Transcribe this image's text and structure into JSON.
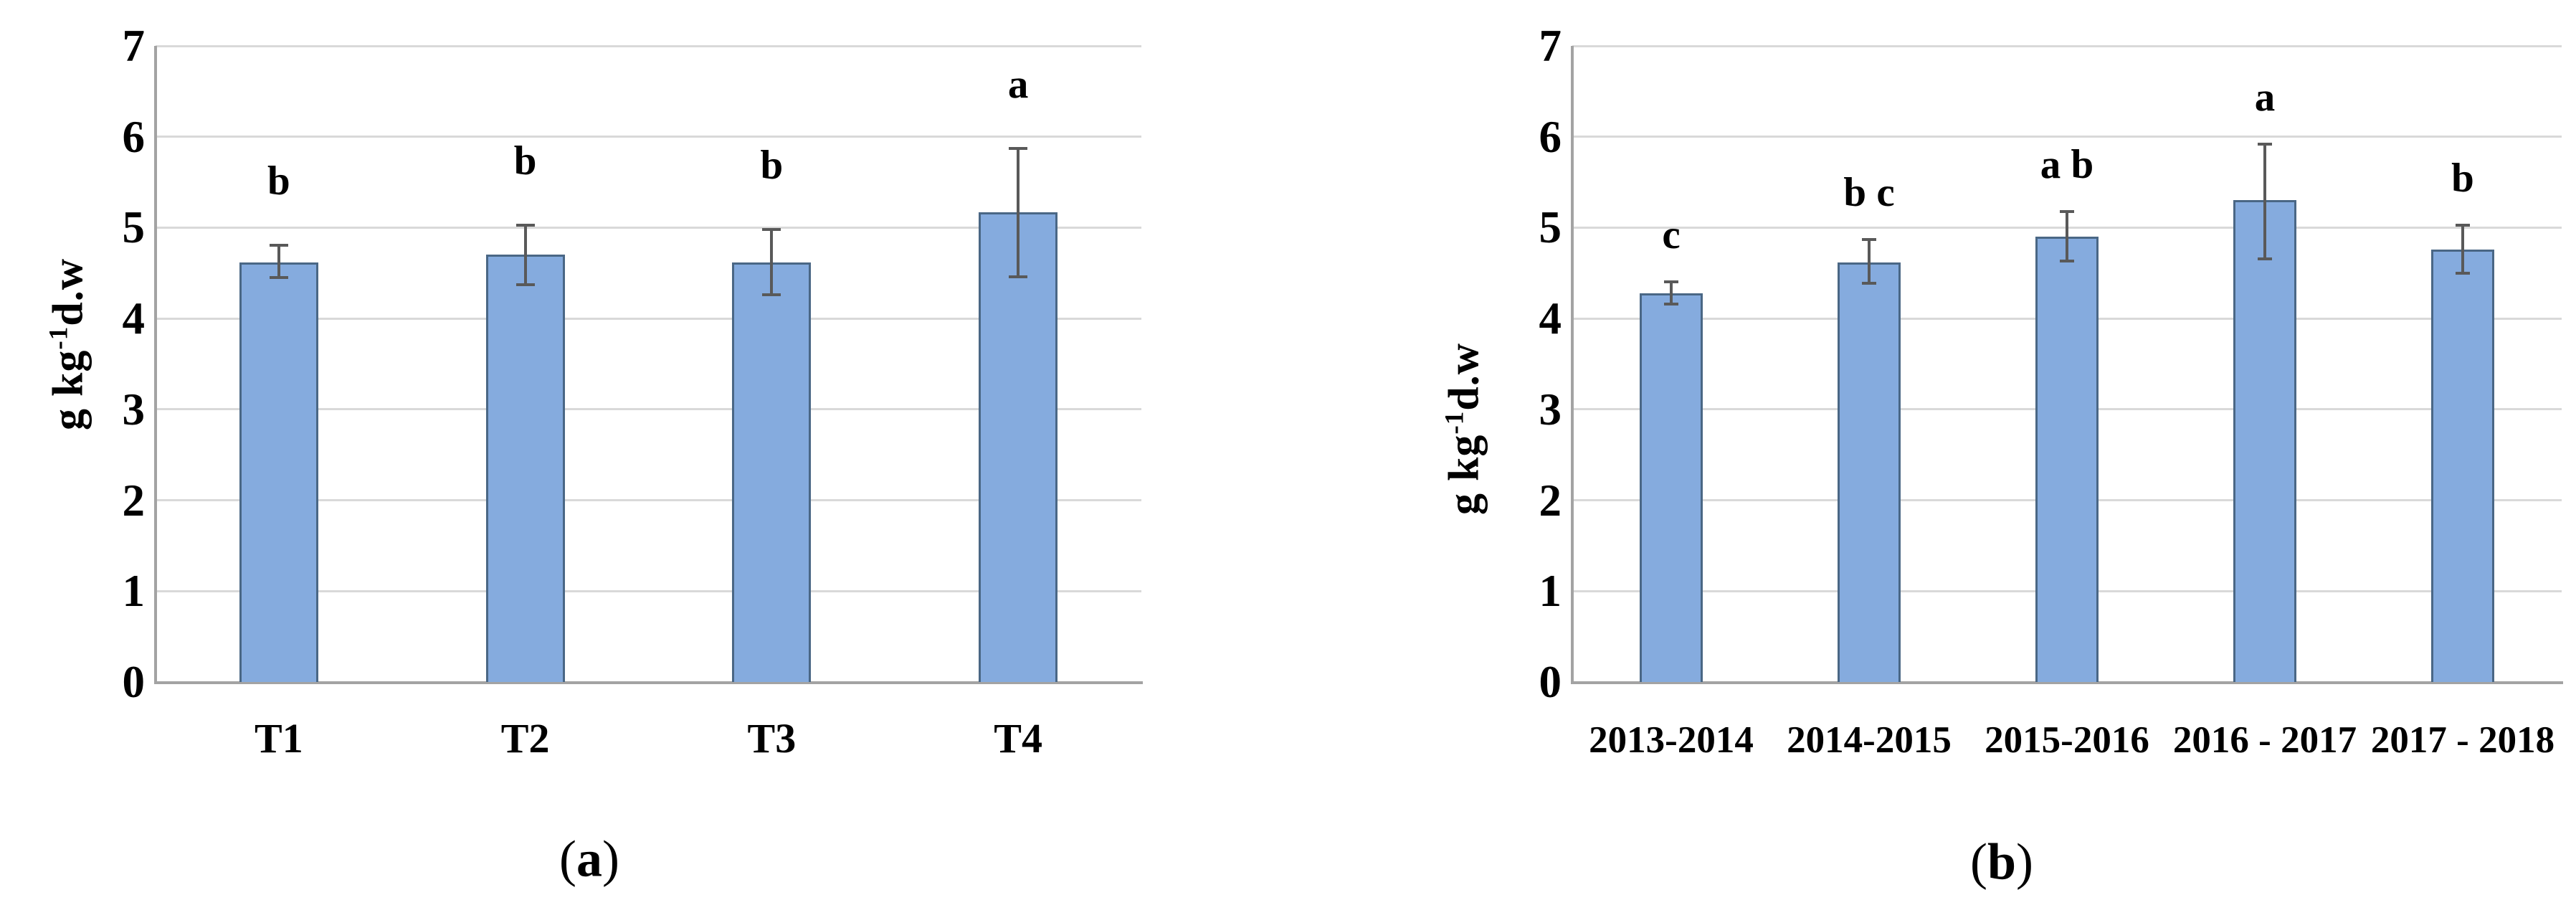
{
  "colors": {
    "bar_fill": "#85ABDE",
    "bar_border": "#4A6785",
    "error_bar": "#595959",
    "gridline": "#D9D9D9",
    "axis_line": "#A3A3A3",
    "text": "#000000",
    "background": "#FFFFFF"
  },
  "chart_data": [
    {
      "id": "a",
      "type": "bar",
      "title": "",
      "caption_letter": "a",
      "ylabel": {
        "main": "g kg",
        "sup": "-1",
        "tail": "d.w"
      },
      "ylim": [
        0,
        7
      ],
      "y_ticks": [
        0,
        1,
        2,
        3,
        4,
        5,
        6,
        7
      ],
      "grid": true,
      "legend": "none",
      "categories": [
        "T1",
        "T2",
        "T3",
        "T4"
      ],
      "values": [
        4.62,
        4.7,
        4.62,
        5.17
      ],
      "error_up": [
        0.19,
        0.33,
        0.36,
        0.7
      ],
      "error_down": [
        0.17,
        0.33,
        0.36,
        0.71
      ],
      "sig_letters": [
        "b",
        "b",
        "b",
        "a"
      ]
    },
    {
      "id": "b",
      "type": "bar",
      "title": "",
      "caption_letter": "b",
      "ylabel": {
        "main": "g kg",
        "sup": "-1",
        "tail": "d.w"
      },
      "ylim": [
        0,
        7
      ],
      "y_ticks": [
        0,
        1,
        2,
        3,
        4,
        5,
        6,
        7
      ],
      "grid": true,
      "legend": "none",
      "categories": [
        "2013-2014",
        "2014-2015",
        "2015-2016",
        "2016 - 2017",
        "2017 - 2018"
      ],
      "values": [
        4.28,
        4.62,
        4.9,
        5.3,
        4.76
      ],
      "error_up": [
        0.12,
        0.25,
        0.28,
        0.62,
        0.27
      ],
      "error_down": [
        0.12,
        0.23,
        0.27,
        0.64,
        0.26
      ],
      "sig_letters": [
        "c",
        "b c",
        "a b",
        "a",
        "b"
      ]
    }
  ]
}
